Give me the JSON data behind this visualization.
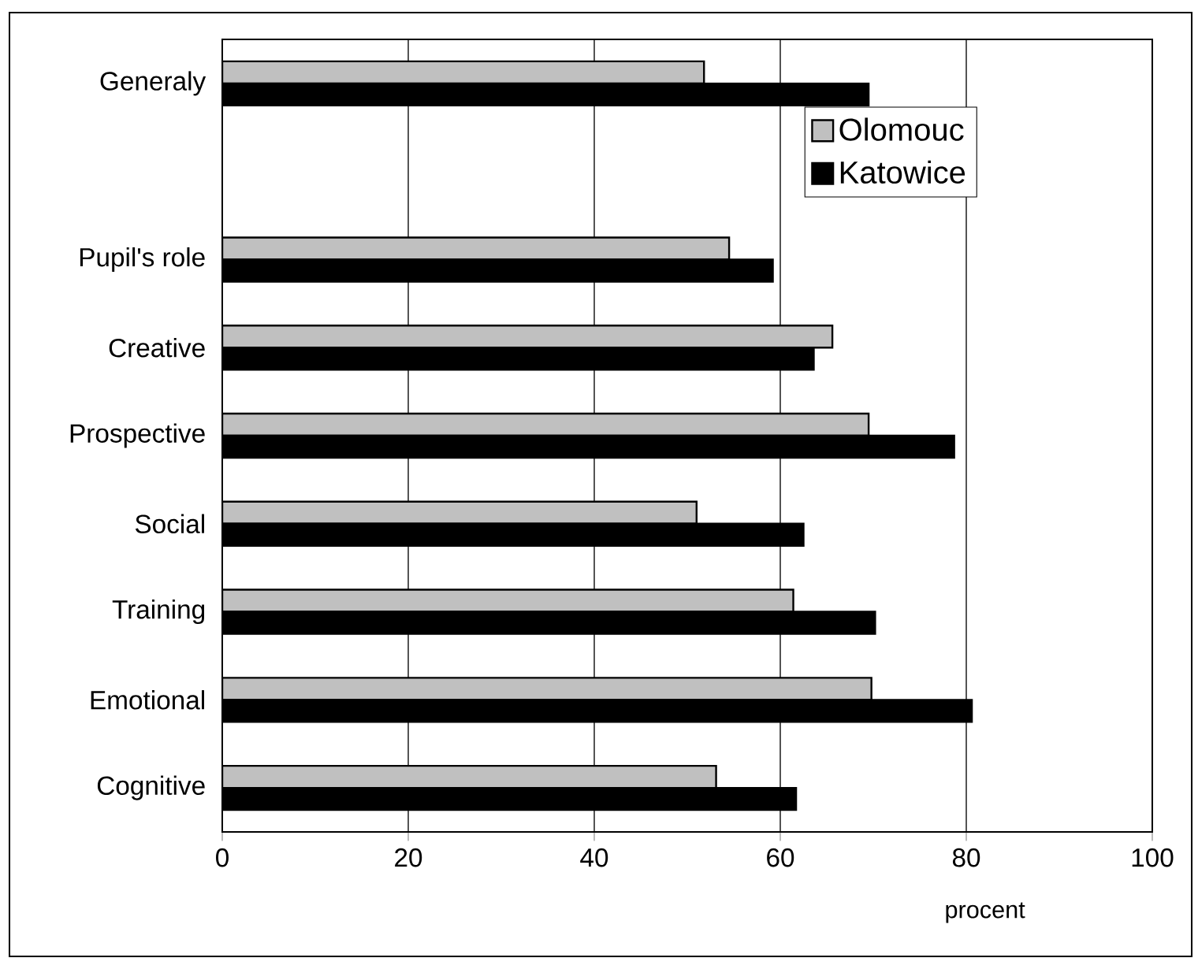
{
  "chart_data": {
    "type": "bar",
    "orientation": "horizontal",
    "xlabel": "procent",
    "categories": [
      "Generaly",
      null,
      "Pupil's role",
      "Creative",
      "Prospective",
      "Social",
      "Training",
      "Emotional",
      "Cognitive"
    ],
    "series": [
      {
        "name": "Olomouc",
        "color": "#c0c0c0",
        "values": [
          51.8,
          null,
          54.5,
          65.6,
          69.5,
          51.0,
          61.4,
          69.8,
          53.1
        ]
      },
      {
        "name": "Katowice",
        "color": "#000000",
        "values": [
          69.5,
          null,
          59.2,
          63.6,
          78.7,
          62.5,
          70.2,
          80.6,
          61.7
        ]
      }
    ],
    "xlim": [
      0,
      100
    ],
    "xticks": [
      0,
      20,
      40,
      60,
      80,
      100
    ],
    "grid": "x",
    "legend": "top right"
  }
}
